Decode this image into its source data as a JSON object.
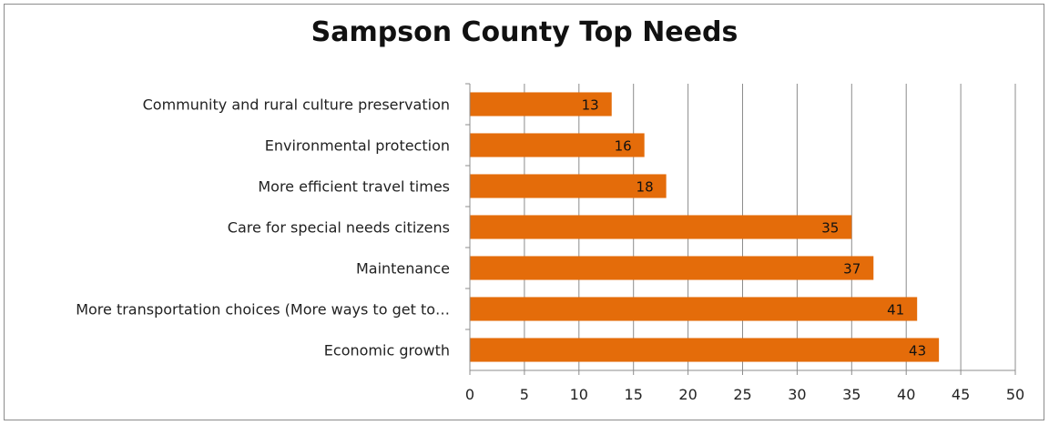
{
  "chart_data": {
    "type": "bar",
    "orientation": "horizontal",
    "title": "Sampson County Top Needs",
    "categories": [
      "Community and rural culture preservation",
      "Environmental protection",
      "More efficient travel times",
      "Care for special needs citizens",
      "Maintenance",
      "More transportation choices (More ways to get to…",
      "Economic growth"
    ],
    "values": [
      13,
      16,
      18,
      35,
      37,
      41,
      43
    ],
    "xlim": [
      0,
      50
    ],
    "xticks": [
      0,
      5,
      10,
      15,
      20,
      25,
      30,
      35,
      40,
      45,
      50
    ],
    "grid": true,
    "bar_color": "#E46C0A",
    "show_data_labels": true
  }
}
